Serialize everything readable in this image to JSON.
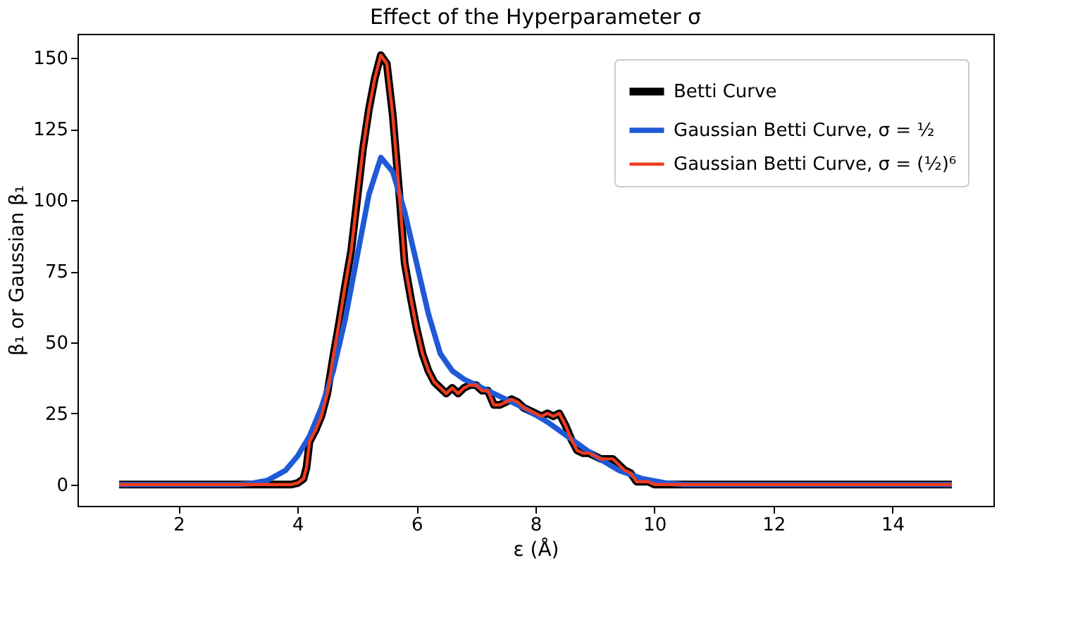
{
  "chart_data": {
    "type": "line",
    "title": "Effect of the Hyperparameter σ",
    "xlabel": "ε (Å)",
    "ylabel": "β₁ or Gaussian β₁",
    "xlim": [
      0.3,
      15.7
    ],
    "xticks": [
      2,
      4,
      6,
      8,
      10,
      12,
      14
    ],
    "ylim": [
      -7.5,
      158.5
    ],
    "yticks": [
      0,
      25,
      50,
      75,
      100,
      125,
      150
    ],
    "grid": false,
    "legend": "top right",
    "marker": "none",
    "line_style": "solid",
    "series": [
      {
        "name": "Betti Curve",
        "color": "#000000",
        "x": [
          1,
          3.9,
          4.0,
          4.1,
          4.15,
          4.2,
          4.3,
          4.4,
          4.5,
          4.6,
          4.7,
          4.8,
          4.9,
          5.0,
          5.1,
          5.2,
          5.3,
          5.4,
          5.5,
          5.6,
          5.7,
          5.8,
          5.9,
          6.0,
          6.1,
          6.2,
          6.3,
          6.4,
          6.5,
          6.6,
          6.7,
          6.8,
          6.9,
          7.0,
          7.1,
          7.2,
          7.3,
          7.4,
          7.5,
          7.6,
          7.7,
          7.8,
          7.9,
          8.0,
          8.1,
          8.2,
          8.3,
          8.4,
          8.5,
          8.6,
          8.7,
          8.8,
          8.9,
          9.0,
          9.1,
          9.2,
          9.3,
          9.4,
          9.5,
          9.6,
          9.7,
          9.8,
          9.9,
          10.0,
          15
        ],
        "values": [
          0,
          0,
          0.5,
          2,
          6,
          15,
          19,
          24,
          32,
          45,
          57,
          70,
          82,
          100,
          118,
          132,
          143,
          151,
          148,
          130,
          105,
          78,
          66,
          55,
          46,
          40,
          36,
          34,
          32,
          34,
          32,
          34,
          35,
          35,
          33,
          33,
          28,
          28,
          29,
          30,
          29,
          27,
          26,
          25,
          24,
          25,
          24,
          25,
          21,
          16,
          12,
          11,
          11,
          10,
          9,
          9,
          9,
          7,
          5,
          4,
          1,
          1,
          1,
          0,
          0
        ]
      },
      {
        "name": "Gaussian Betti Curve, σ = ½",
        "color": "#1f5ad6",
        "x": [
          1,
          3,
          3.2,
          3.5,
          3.8,
          4.0,
          4.2,
          4.4,
          4.6,
          4.8,
          5.0,
          5.2,
          5.4,
          5.6,
          5.8,
          6.0,
          6.2,
          6.4,
          6.6,
          6.8,
          7.0,
          7.4,
          7.8,
          8.2,
          8.6,
          9.0,
          9.4,
          9.8,
          10.2,
          10.5,
          15
        ],
        "values": [
          0,
          0,
          0.3,
          1.5,
          5,
          10,
          17,
          27,
          40,
          58,
          80,
          102,
          115,
          110,
          96,
          78,
          60,
          46,
          40,
          37,
          35,
          31,
          27,
          22,
          16,
          10,
          5,
          2,
          0.5,
          0,
          0
        ]
      },
      {
        "name": "Gaussian Betti Curve, σ = (½)⁶",
        "color": "#f03c1e",
        "x": [
          1,
          3.9,
          4.0,
          4.1,
          4.15,
          4.2,
          4.3,
          4.4,
          4.5,
          4.6,
          4.7,
          4.8,
          4.9,
          5.0,
          5.1,
          5.2,
          5.3,
          5.4,
          5.5,
          5.6,
          5.7,
          5.8,
          5.9,
          6.0,
          6.1,
          6.2,
          6.3,
          6.4,
          6.5,
          6.6,
          6.7,
          6.8,
          6.9,
          7.0,
          7.1,
          7.2,
          7.3,
          7.4,
          7.5,
          7.6,
          7.7,
          7.8,
          7.9,
          8.0,
          8.1,
          8.2,
          8.3,
          8.4,
          8.5,
          8.6,
          8.7,
          8.8,
          8.9,
          9.0,
          9.1,
          9.2,
          9.3,
          9.4,
          9.5,
          9.6,
          9.7,
          9.8,
          9.9,
          10.0,
          15
        ],
        "values": [
          0,
          0,
          0.5,
          2,
          6,
          15,
          19,
          24,
          32,
          45,
          57,
          70,
          82,
          100,
          118,
          132,
          143,
          151,
          148,
          130,
          105,
          78,
          66,
          55,
          46,
          40,
          36,
          34,
          32,
          34,
          32,
          34,
          35,
          35,
          33,
          33,
          28,
          28,
          29,
          30,
          29,
          27,
          26,
          25,
          24,
          25,
          24,
          25,
          21,
          16,
          12,
          11,
          11,
          10,
          9,
          9,
          9,
          7,
          5,
          4,
          1,
          1,
          1,
          0,
          0
        ]
      }
    ]
  }
}
